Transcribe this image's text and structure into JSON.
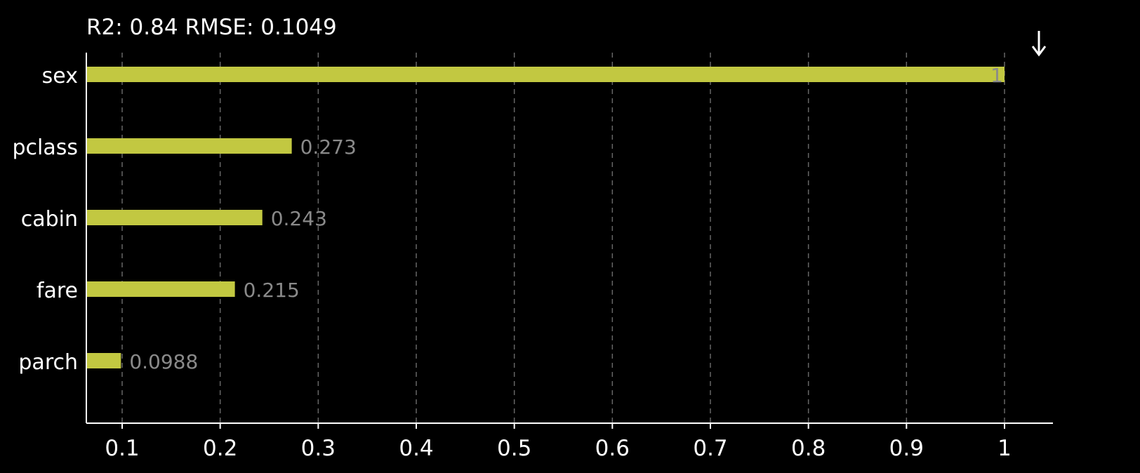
{
  "header": {
    "title": "R2: 0.84 RMSE: 0.1049",
    "sort_icon": "arrow-down-icon"
  },
  "colors": {
    "background": "#000000",
    "bar": "#c2c841",
    "axis": "#ffffff",
    "grid": "#666666",
    "value_label": "#8a8a8a"
  },
  "chart_data": {
    "type": "bar",
    "orientation": "horizontal",
    "categories": [
      "sex",
      "pclass",
      "cabin",
      "fare",
      "parch"
    ],
    "values": [
      1,
      0.273,
      0.243,
      0.215,
      0.0988
    ],
    "value_labels": [
      "1",
      "0.273",
      "0.243",
      "0.215",
      "0.0988"
    ],
    "title": "R2: 0.84 RMSE: 0.1049",
    "xlim": [
      0.065,
      1.05
    ],
    "xticks": [
      0.1,
      0.2,
      0.3,
      0.4,
      0.5,
      0.6,
      0.7,
      0.8,
      0.9,
      1
    ],
    "xtick_labels": [
      "0.1",
      "0.2",
      "0.3",
      "0.4",
      "0.5",
      "0.6",
      "0.7",
      "0.8",
      "0.9",
      "1"
    ],
    "grid": "vertical dashed",
    "legend": "none"
  }
}
